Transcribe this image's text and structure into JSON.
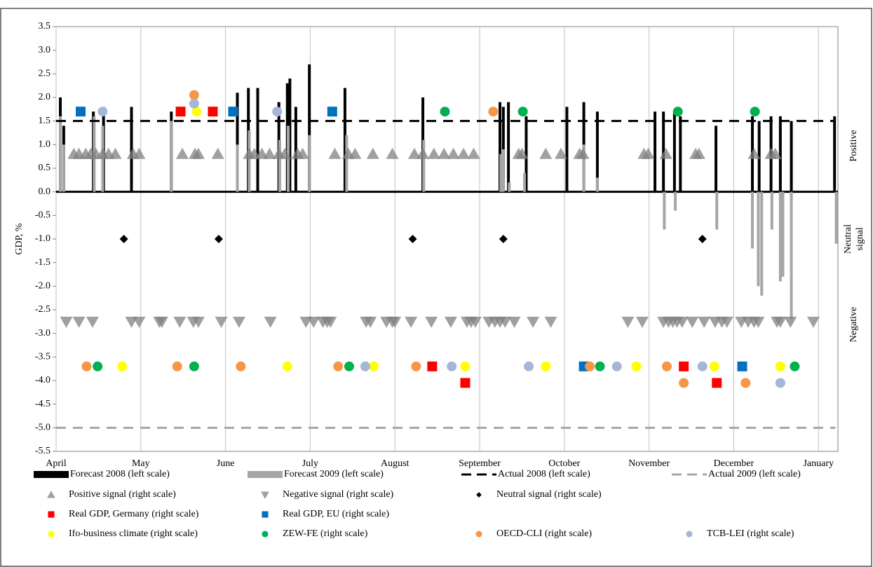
{
  "chart_data": {
    "type": "combo",
    "y_label": "GDP, %",
    "right_labels": [
      "Positive",
      "Neutral",
      "signal",
      "Negative"
    ],
    "xlim": [
      0,
      9.23
    ],
    "xticks": [
      {
        "value": 0,
        "label": "April"
      },
      {
        "value": 1,
        "label": "May"
      },
      {
        "value": 2,
        "label": "June"
      },
      {
        "value": 3,
        "label": "July"
      },
      {
        "value": 4,
        "label": "August"
      },
      {
        "value": 5,
        "label": "September"
      },
      {
        "value": 6,
        "label": "October"
      },
      {
        "value": 7,
        "label": "November"
      },
      {
        "value": 8,
        "label": "December"
      },
      {
        "value": 9,
        "label": "January"
      }
    ],
    "ylim": [
      -5.5,
      3.5
    ],
    "yticks": [
      3.5,
      {
        "value": 3,
        "label": "3.0"
      },
      2.5,
      {
        "value": 2,
        "label": "2.0"
      },
      1.5,
      {
        "value": 1,
        "label": "1.0"
      },
      0.5,
      {
        "value": 0,
        "label": "0.0"
      },
      -0.5,
      {
        "value": -1,
        "label": "-1.0"
      },
      -1.5,
      {
        "value": -2,
        "label": "-2.0"
      },
      -2.5,
      {
        "value": -3,
        "label": "-3.0"
      },
      -3.5,
      {
        "value": -4,
        "label": "-4.0"
      },
      -4.5,
      {
        "value": -5,
        "label": "-5.0"
      },
      -5.5
    ],
    "series": [
      {
        "name": "Forecast 2008 (left scale)",
        "type": "bar",
        "color": "#000000",
        "x": [
          0.05,
          0.09,
          0.44,
          0.56,
          0.89,
          1.36,
          2.14,
          2.27,
          2.38,
          2.63,
          2.73,
          2.76,
          2.83,
          2.99,
          3.41,
          4.33,
          5.24,
          5.28,
          5.34,
          5.55,
          6.03,
          6.23,
          6.39,
          7.07,
          7.17,
          7.3,
          7.37,
          7.79,
          8.22,
          8.3,
          8.44,
          8.55,
          8.68,
          9.19
        ],
        "values": [
          2.0,
          1.4,
          1.7,
          1.8,
          1.8,
          1.7,
          2.1,
          2.2,
          2.2,
          1.9,
          2.3,
          2.4,
          1.8,
          2.7,
          2.2,
          2.0,
          1.9,
          1.8,
          1.9,
          1.6,
          1.8,
          1.9,
          1.7,
          1.7,
          1.7,
          1.7,
          1.6,
          1.4,
          1.6,
          1.5,
          1.6,
          1.6,
          1.5,
          1.6
        ]
      },
      {
        "name": "Forecast 2009 (left scale)",
        "type": "bar",
        "color": "#a6a6a6",
        "x": [
          0.05,
          0.09,
          0.45,
          0.55,
          1.36,
          2.14,
          2.28,
          2.64,
          2.74,
          2.99,
          3.43,
          4.34,
          5.25,
          5.28,
          5.35,
          5.53,
          6.23,
          6.39,
          7.18,
          7.31,
          7.8,
          8.22,
          8.29,
          8.33,
          8.45,
          8.55,
          8.58,
          8.68,
          9.21
        ],
        "values": [
          1.6,
          1.0,
          1.6,
          1.4,
          1.5,
          1.0,
          1.3,
          1.1,
          1.4,
          1.2,
          1.2,
          1.1,
          0.8,
          0.9,
          0.2,
          0.4,
          1.0,
          0.3,
          -0.8,
          -0.4,
          -0.8,
          -1.2,
          -2.0,
          -2.2,
          -0.8,
          -1.9,
          -1.8,
          -2.7,
          -1.1
        ]
      },
      {
        "name": "Actual 2008 (left scale)",
        "type": "line",
        "color": "#000000",
        "x": [
          0,
          9.2
        ],
        "values": [
          1.5,
          1.5
        ]
      },
      {
        "name": "Actual 2009 (left scale)",
        "type": "line",
        "color": "#a6a6a6",
        "x": [
          0,
          9.2
        ],
        "values": [
          -5.0,
          -5.0
        ]
      },
      {
        "name": "Positive signal (right scale)",
        "type": "triangle-up",
        "color": "#808080",
        "x": [
          0.21,
          0.27,
          0.35,
          0.41,
          0.47,
          0.55,
          0.62,
          0.7,
          0.91,
          0.98,
          1.49,
          1.64,
          1.68,
          1.91,
          2.28,
          2.34,
          2.43,
          2.52,
          2.63,
          2.7,
          2.85,
          2.91,
          3.29,
          3.45,
          3.53,
          3.74,
          3.97,
          4.23,
          4.33,
          4.46,
          4.58,
          4.69,
          4.81,
          4.93,
          5.46,
          5.5,
          5.78,
          5.96,
          6.18,
          6.22,
          6.94,
          6.99,
          7.2,
          7.55,
          7.59,
          8.24,
          8.44,
          8.49
        ],
        "values": [
          0.8,
          0.8,
          0.8,
          0.8,
          0.8,
          0.8,
          0.8,
          0.8,
          0.8,
          0.8,
          0.8,
          0.8,
          0.8,
          0.8,
          0.8,
          0.8,
          0.8,
          0.8,
          0.8,
          0.8,
          0.8,
          0.8,
          0.8,
          0.8,
          0.8,
          0.8,
          0.8,
          0.8,
          0.8,
          0.8,
          0.8,
          0.8,
          0.8,
          0.8,
          0.8,
          0.8,
          0.8,
          0.8,
          0.8,
          0.8,
          0.8,
          0.8,
          0.8,
          0.8,
          0.8,
          0.8,
          0.8,
          0.8
        ]
      },
      {
        "name": "Negative signal (right scale)",
        "type": "triangle-down",
        "color": "#808080",
        "x": [
          0.12,
          0.27,
          0.43,
          0.89,
          0.98,
          1.22,
          1.25,
          1.46,
          1.62,
          1.68,
          1.95,
          2.16,
          2.53,
          2.95,
          3.04,
          3.15,
          3.2,
          3.24,
          3.66,
          3.71,
          3.9,
          3.97,
          4.0,
          4.19,
          4.43,
          4.66,
          4.85,
          4.9,
          4.95,
          5.11,
          5.18,
          5.24,
          5.3,
          5.41,
          5.63,
          5.84,
          6.75,
          6.92,
          7.17,
          7.23,
          7.28,
          7.33,
          7.39,
          7.51,
          7.65,
          7.78,
          7.86,
          7.92,
          8.09,
          8.17,
          8.24,
          8.29,
          8.51,
          8.55,
          8.67,
          8.94
        ],
        "values": [
          -2.75,
          -2.75,
          -2.75,
          -2.75,
          -2.75,
          -2.75,
          -2.75,
          -2.75,
          -2.75,
          -2.75,
          -2.75,
          -2.75,
          -2.75,
          -2.75,
          -2.75,
          -2.75,
          -2.75,
          -2.75,
          -2.75,
          -2.75,
          -2.75,
          -2.75,
          -2.75,
          -2.75,
          -2.75,
          -2.75,
          -2.75,
          -2.75,
          -2.75,
          -2.75,
          -2.75,
          -2.75,
          -2.75,
          -2.75,
          -2.75,
          -2.75,
          -2.75,
          -2.75,
          -2.75,
          -2.75,
          -2.75,
          -2.75,
          -2.75,
          -2.75,
          -2.75,
          -2.75,
          -2.75,
          -2.75,
          -2.75,
          -2.75,
          -2.75,
          -2.75,
          -2.75,
          -2.75,
          -2.75,
          -2.75
        ]
      },
      {
        "name": "Neutral signal (right scale)",
        "type": "diamond",
        "color": "#000000",
        "x": [
          0.8,
          1.92,
          4.21,
          5.28,
          7.63
        ],
        "values": [
          -1.0,
          -1.0,
          -1.0,
          -1.0,
          -1.0
        ]
      },
      {
        "name": "Real GDP, Germany (right scale)",
        "type": "square",
        "color": "#ff0000",
        "x": [
          1.47,
          1.85,
          4.44,
          4.83,
          7.41,
          7.8
        ],
        "values": [
          1.7,
          1.7,
          -3.7,
          -4.05,
          -3.7,
          -4.05
        ]
      },
      {
        "name": "Real GDP, EU (right scale)",
        "type": "square",
        "color": "#0070c0",
        "x": [
          0.29,
          2.09,
          3.26,
          6.23,
          8.1
        ],
        "values": [
          1.7,
          1.7,
          1.7,
          -3.7,
          -3.7
        ]
      },
      {
        "name": "Ifo-business climate (right scale)",
        "type": "circle",
        "color": "#ffff00",
        "x": [
          1.66,
          0.78,
          2.73,
          3.75,
          4.83,
          5.78,
          6.85,
          7.77,
          8.55
        ],
        "values": [
          1.7,
          -3.7,
          -3.7,
          -3.7,
          -3.7,
          -3.7,
          -3.7,
          -3.7,
          -3.7
        ]
      },
      {
        "name": "ZEW-FE (right scale)",
        "type": "circle",
        "color": "#00b050",
        "x": [
          4.59,
          5.51,
          7.34,
          8.25,
          0.49,
          1.63,
          3.46,
          6.42,
          8.72
        ],
        "values": [
          1.7,
          1.7,
          1.7,
          1.7,
          -3.7,
          -3.7,
          -3.7,
          -3.7,
          -3.7
        ]
      },
      {
        "name": "OECD-CLI (right scale)",
        "type": "circle",
        "color": "#f79646",
        "x": [
          1.63,
          5.16,
          0.36,
          1.43,
          2.18,
          3.33,
          4.25,
          6.3,
          7.21,
          7.41,
          8.14
        ],
        "values": [
          2.05,
          1.7,
          -3.7,
          -3.7,
          -3.7,
          -3.7,
          -3.7,
          -3.7,
          -3.7,
          -4.05,
          -4.05
        ]
      },
      {
        "name": "TCB-LEI (right scale)",
        "type": "circle",
        "color": "#a6b6d6",
        "x": [
          0.55,
          1.63,
          2.61,
          3.65,
          4.67,
          5.58,
          6.62,
          7.63,
          8.55
        ],
        "values": [
          1.7,
          1.87,
          1.7,
          -3.7,
          -3.7,
          -3.7,
          -3.7,
          -3.7,
          -4.05
        ]
      }
    ]
  }
}
